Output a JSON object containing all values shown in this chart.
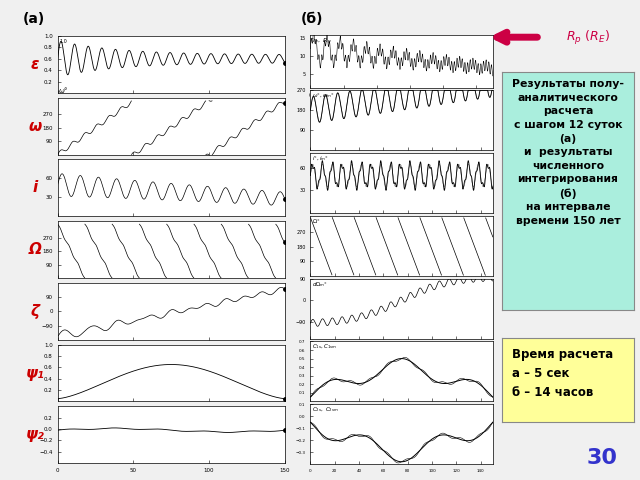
{
  "bg_color": "#f0f0f0",
  "label_a": "(а)",
  "label_b": "(б)",
  "arrow_color": "#cc0044",
  "box1_text": "Результаты полу-\nаналитического\nрасчета\nс шагом 12 суток\n(а)\nи  результаты\nчисленного\nинтегрирования\n(б)\nна интервале\nвремени 150 лет",
  "box1_bg": "#aaeedd",
  "box2_text": "Время расчета\nа – 5 сек\nб – 14 часов",
  "box2_bg": "#ffff99",
  "number": "30",
  "number_color": "#3333cc",
  "greek_labels": [
    "ε",
    "ω",
    "i",
    "Ω",
    "ζ",
    "ψ₁",
    "ψ₂"
  ],
  "greek_color": "#cc0000",
  "figsize": [
    6.4,
    4.8
  ],
  "dpi": 100
}
